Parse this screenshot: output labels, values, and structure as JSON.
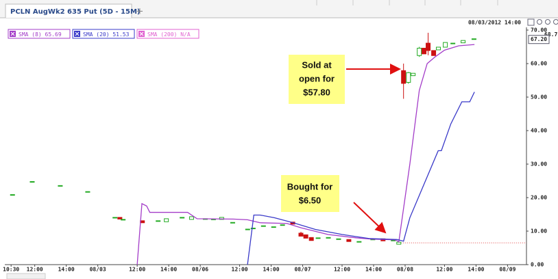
{
  "tab": {
    "title": "PCLN AugWk2 635 Put (5D - 15M)",
    "add": "+"
  },
  "timestamp": "08/03/2012 14:00",
  "chart_data": {
    "type": "candlestick",
    "xlim": [
      0.6,
      33.7
    ],
    "xticks": [
      {
        "value": 1,
        "label": "10:30"
      },
      {
        "value": 2.5,
        "label": "12:00"
      },
      {
        "value": 4.5,
        "label": "14:00"
      },
      {
        "value": 6.5,
        "label": "08/03"
      },
      {
        "value": 9,
        "label": "12:00"
      },
      {
        "value": 11,
        "label": "14:00"
      },
      {
        "value": 13,
        "label": "08/06"
      },
      {
        "value": 15.5,
        "label": "12:00"
      },
      {
        "value": 17.5,
        "label": "14:00"
      },
      {
        "value": 19.5,
        "label": "08/07"
      },
      {
        "value": 22,
        "label": "12:00"
      },
      {
        "value": 24,
        "label": "14:00"
      },
      {
        "value": 26,
        "label": "08/08"
      },
      {
        "value": 28.5,
        "label": "12:00"
      },
      {
        "value": 30.5,
        "label": "14:00"
      },
      {
        "value": 32.5,
        "label": "08/09"
      }
    ],
    "ylim": [
      0,
      70
    ],
    "yticks": [
      {
        "value": 0,
        "label": "0.00"
      },
      {
        "value": 10,
        "label": "10.00"
      },
      {
        "value": 20,
        "label": "20.00"
      },
      {
        "value": 30,
        "label": "30.00"
      },
      {
        "value": 40,
        "label": "40.00"
      },
      {
        "value": 50,
        "label": "50.00"
      },
      {
        "value": 60,
        "label": "60.00"
      },
      {
        "value": 70,
        "label": "70.00"
      }
    ],
    "up_color": "#22aa22",
    "down_color": "#cc1111",
    "candles": {
      "x": [
        1.09,
        2.34,
        4.12,
        5.86,
        7.59,
        7.9,
        8.11,
        9.33,
        10.33,
        10.85,
        11.85,
        12.45,
        13.32,
        13.84,
        14.36,
        15.06,
        16.01,
        16.36,
        17.01,
        17.66,
        18.22,
        18.87,
        19.39,
        19.7,
        20.05,
        20.48,
        21.13,
        21.78,
        22.43,
        23.08,
        23.95,
        24.6,
        25.25,
        25.6,
        25.9,
        26.21,
        26.51,
        26.9,
        27.2,
        27.46,
        27.81,
        28.11,
        28.55,
        29.03,
        29.68,
        30.37
      ],
      "open": [
        20.8,
        24.7,
        23.5,
        21.7,
        14.0,
        14.0,
        13.4,
        13.0,
        13.0,
        12.9,
        14.0,
        13.6,
        13.6,
        13.5,
        13.6,
        12.5,
        10.5,
        10.8,
        11.5,
        11.2,
        11.8,
        12.6,
        9.3,
        8.8,
        8.0,
        7.9,
        8.0,
        7.6,
        7.4,
        6.8,
        7.5,
        7.6,
        7.2,
        6.2,
        57.8,
        54.5,
        56.5,
        62.5,
        64.5,
        66,
        63.8,
        64.2,
        65,
        66,
        66.3,
        67.3
      ],
      "high": [
        20.8,
        24.7,
        23.5,
        21.7,
        14.0,
        14.0,
        13.4,
        13.0,
        13.0,
        13.6,
        14.0,
        14.2,
        13.6,
        13.5,
        14.0,
        12.5,
        10.5,
        10.8,
        11.5,
        11.2,
        11.8,
        12.6,
        9.8,
        8.8,
        8.0,
        7.9,
        8.0,
        7.6,
        7.4,
        6.8,
        7.5,
        7.6,
        7.2,
        6.6,
        60,
        57.5,
        57,
        65,
        64.5,
        69.2,
        63.8,
        64.8,
        66.2,
        66,
        66.8,
        67.3
      ],
      "low": [
        20.8,
        24.7,
        23.5,
        21.7,
        14.0,
        13.7,
        13.4,
        12.6,
        13.0,
        12.9,
        14.0,
        13.6,
        13.6,
        13.5,
        13.6,
        12.5,
        10.5,
        10.8,
        11.5,
        11.2,
        11.8,
        12.2,
        8.5,
        8.0,
        7.3,
        7.9,
        8.0,
        7.6,
        7.0,
        6.8,
        7.5,
        7.2,
        7.2,
        6.2,
        49.5,
        54,
        56.5,
        62,
        63,
        62.5,
        62.5,
        64.2,
        65,
        66,
        66.3,
        67.3
      ],
      "close": [
        20.8,
        24.7,
        23.5,
        21.7,
        14.0,
        13.7,
        13.4,
        12.6,
        13.0,
        13.6,
        14.0,
        14.2,
        13.6,
        13.5,
        14.0,
        12.5,
        10.5,
        10.8,
        11.5,
        11.2,
        11.8,
        12.2,
        8.6,
        8.0,
        7.3,
        7.9,
        8.0,
        7.6,
        7.0,
        6.8,
        7.5,
        7.2,
        7.2,
        6.6,
        54.2,
        57.2,
        57,
        64.5,
        63,
        64,
        62.5,
        64.8,
        66.2,
        66,
        66.8,
        67.3
      ]
    },
    "series": [
      {
        "name": "SMA (8)",
        "last": 65.69,
        "color": "#a33cc8",
        "x": [
          9.0,
          9.3,
          9.6,
          9.8,
          12.2,
          12.8,
          15.1,
          16.0,
          16.8,
          18.5,
          19.4,
          21.1,
          22.9,
          23.9,
          25.4,
          25.6,
          26.3,
          26.9,
          27.4,
          27.9,
          28.5,
          29.4,
          30.4
        ],
        "values": [
          0,
          18.2,
          17.5,
          15.6,
          15.6,
          13.7,
          13.6,
          13.4,
          12.5,
          12.3,
          11.0,
          9.0,
          8.0,
          7.6,
          7.4,
          6.8,
          30,
          52,
          60,
          62,
          64,
          65.3,
          65.69
        ]
      },
      {
        "name": "SMA (20)",
        "last": 51.53,
        "color": "#3838c8",
        "x": [
          16.0,
          16.4,
          16.8,
          17.7,
          18.9,
          20.3,
          22.0,
          23.7,
          25.5,
          25.9,
          26.3,
          27.2,
          28.1,
          28.3,
          28.9,
          29.6,
          30.1,
          30.4
        ],
        "values": [
          0,
          14.8,
          14.8,
          14.0,
          12.5,
          10.5,
          9.0,
          7.8,
          7.5,
          7.0,
          14,
          24,
          34,
          34,
          42,
          48.6,
          48.6,
          51.53
        ]
      },
      {
        "name": "SMA (200)",
        "last": "N/A",
        "color": "#e060d0",
        "x": [],
        "values": []
      }
    ],
    "reference_line": {
      "value": 6.5,
      "x": 25.6,
      "color": "#e04040"
    },
    "price_labels": [
      {
        "value": 68.7,
        "label": "68.7"
      },
      {
        "value": 67.2,
        "label": "67.20"
      }
    ],
    "annotations": [
      {
        "lines": [
          "Sold at",
          "open for",
          "$57.80"
        ]
      },
      {
        "lines": [
          "Bought for",
          "$6.50"
        ]
      }
    ]
  }
}
